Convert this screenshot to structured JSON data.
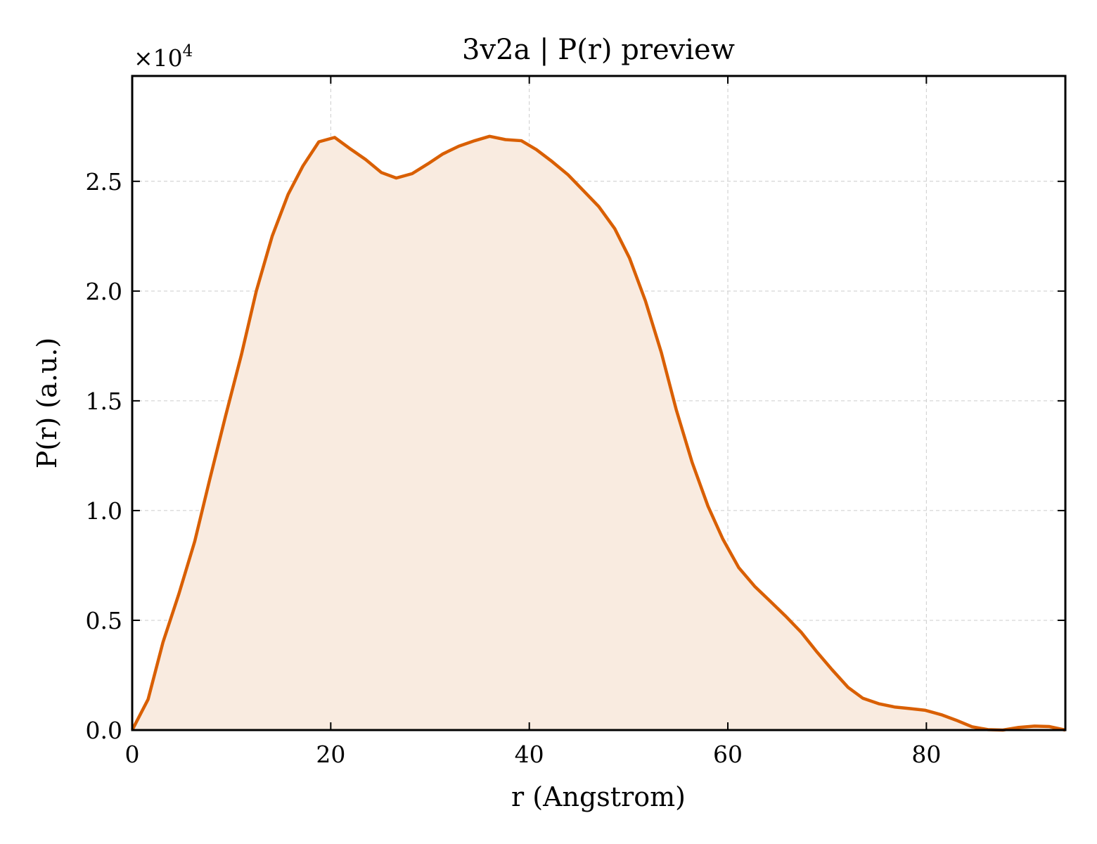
{
  "chart_data": {
    "type": "area",
    "title": "3v2a | P(r) preview",
    "xlabel": "r (Angstrom)",
    "ylabel": "P(r) (a.u.)",
    "y_multiplier": {
      "base": "×10",
      "exponent": "4"
    },
    "xlim": [
      0,
      94
    ],
    "ylim": [
      0,
      2.98
    ],
    "x_ticks": [
      0,
      20,
      40,
      60,
      80
    ],
    "x_tick_labels": [
      "0",
      "20",
      "40",
      "60",
      "80"
    ],
    "y_ticks": [
      0,
      0.5,
      1.0,
      1.5,
      2.0,
      2.5
    ],
    "y_tick_labels": [
      "0.0",
      "0.5",
      "1.0",
      "1.5",
      "2.0",
      "2.5"
    ],
    "grid": true,
    "line_color": "#d95f02",
    "fill_color": "#f9ebe0",
    "series": [
      {
        "x": [
          0,
          1.6,
          3.1,
          4.7,
          6.3,
          7.8,
          9.4,
          11.0,
          12.5,
          14.1,
          15.7,
          17.2,
          18.8,
          20.4,
          21.9,
          23.5,
          25.1,
          26.6,
          28.2,
          29.8,
          31.3,
          32.9,
          34.5,
          36.0,
          37.6,
          39.2,
          40.7,
          42.3,
          43.9,
          45.4,
          47.0,
          48.6,
          50.1,
          51.7,
          53.3,
          54.8,
          56.4,
          58.0,
          59.5,
          61.1,
          62.7,
          64.2,
          65.8,
          67.4,
          68.9,
          70.5,
          72.1,
          73.6,
          75.2,
          76.8,
          78.3,
          79.9,
          81.5,
          83.0,
          84.6,
          86.2,
          87.7,
          89.3,
          90.9,
          92.4,
          94.0
        ],
        "y": [
          0.0,
          0.14,
          0.4,
          0.62,
          0.86,
          1.14,
          1.43,
          1.71,
          2.0,
          2.25,
          2.44,
          2.57,
          2.68,
          2.7,
          2.65,
          2.6,
          2.54,
          2.515,
          2.535,
          2.58,
          2.625,
          2.66,
          2.685,
          2.705,
          2.69,
          2.685,
          2.645,
          2.59,
          2.53,
          2.46,
          2.385,
          2.285,
          2.15,
          1.955,
          1.72,
          1.46,
          1.22,
          1.02,
          0.87,
          0.74,
          0.655,
          0.59,
          0.52,
          0.445,
          0.36,
          0.275,
          0.195,
          0.145,
          0.12,
          0.105,
          0.098,
          0.09,
          0.07,
          0.045,
          0.015,
          0.002,
          0.0,
          0.012,
          0.018,
          0.016,
          0.0
        ]
      }
    ]
  }
}
